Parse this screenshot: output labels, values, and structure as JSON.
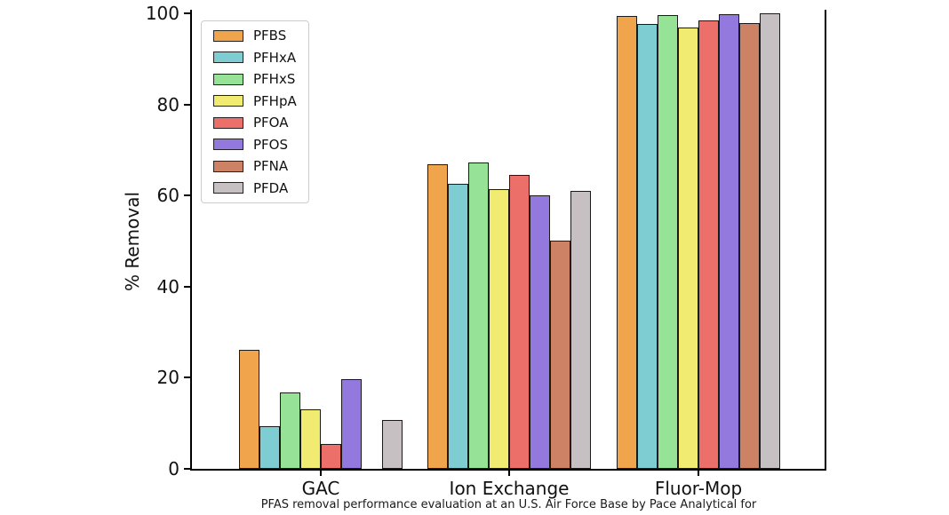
{
  "figure": {
    "background": "#ffffff"
  },
  "chart_data": {
    "type": "bar",
    "title": "",
    "xlabel": "",
    "ylabel": "% Removal",
    "caption": "PFAS removal performance evaluation at an U.S. Air Force Base by Pace Analytical for",
    "categories": [
      "GAC",
      "Ion Exchange",
      "Fluor-Mop"
    ],
    "series": [
      {
        "name": "PFBS",
        "color": "#F0A44C",
        "values": [
          26.2,
          66.8,
          99.4
        ]
      },
      {
        "name": "PFHxA",
        "color": "#7ECDD3",
        "values": [
          9.4,
          62.6,
          97.6
        ]
      },
      {
        "name": "PFHxS",
        "color": "#96E296",
        "values": [
          16.7,
          67.3,
          99.7
        ]
      },
      {
        "name": "PFHpA",
        "color": "#F2EB72",
        "values": [
          13.0,
          61.5,
          96.9
        ]
      },
      {
        "name": "PFOA",
        "color": "#EC7069",
        "values": [
          5.4,
          64.5,
          98.4
        ]
      },
      {
        "name": "PFOS",
        "color": "#9379DE",
        "values": [
          19.6,
          60.0,
          99.9
        ]
      },
      {
        "name": "PFNA",
        "color": "#CD8265",
        "values": [
          0.0,
          50.2,
          97.9
        ]
      },
      {
        "name": "PFDA",
        "color": "#C6C0C2",
        "values": [
          10.7,
          61.0,
          100.0
        ]
      }
    ],
    "ylim": [
      0,
      100
    ],
    "yticks": [
      0,
      20,
      40,
      60,
      80,
      100
    ],
    "legend_position": "upper left",
    "grid": false,
    "bar_edge_color": "#1a1a1a",
    "axis_color": "#000000"
  }
}
